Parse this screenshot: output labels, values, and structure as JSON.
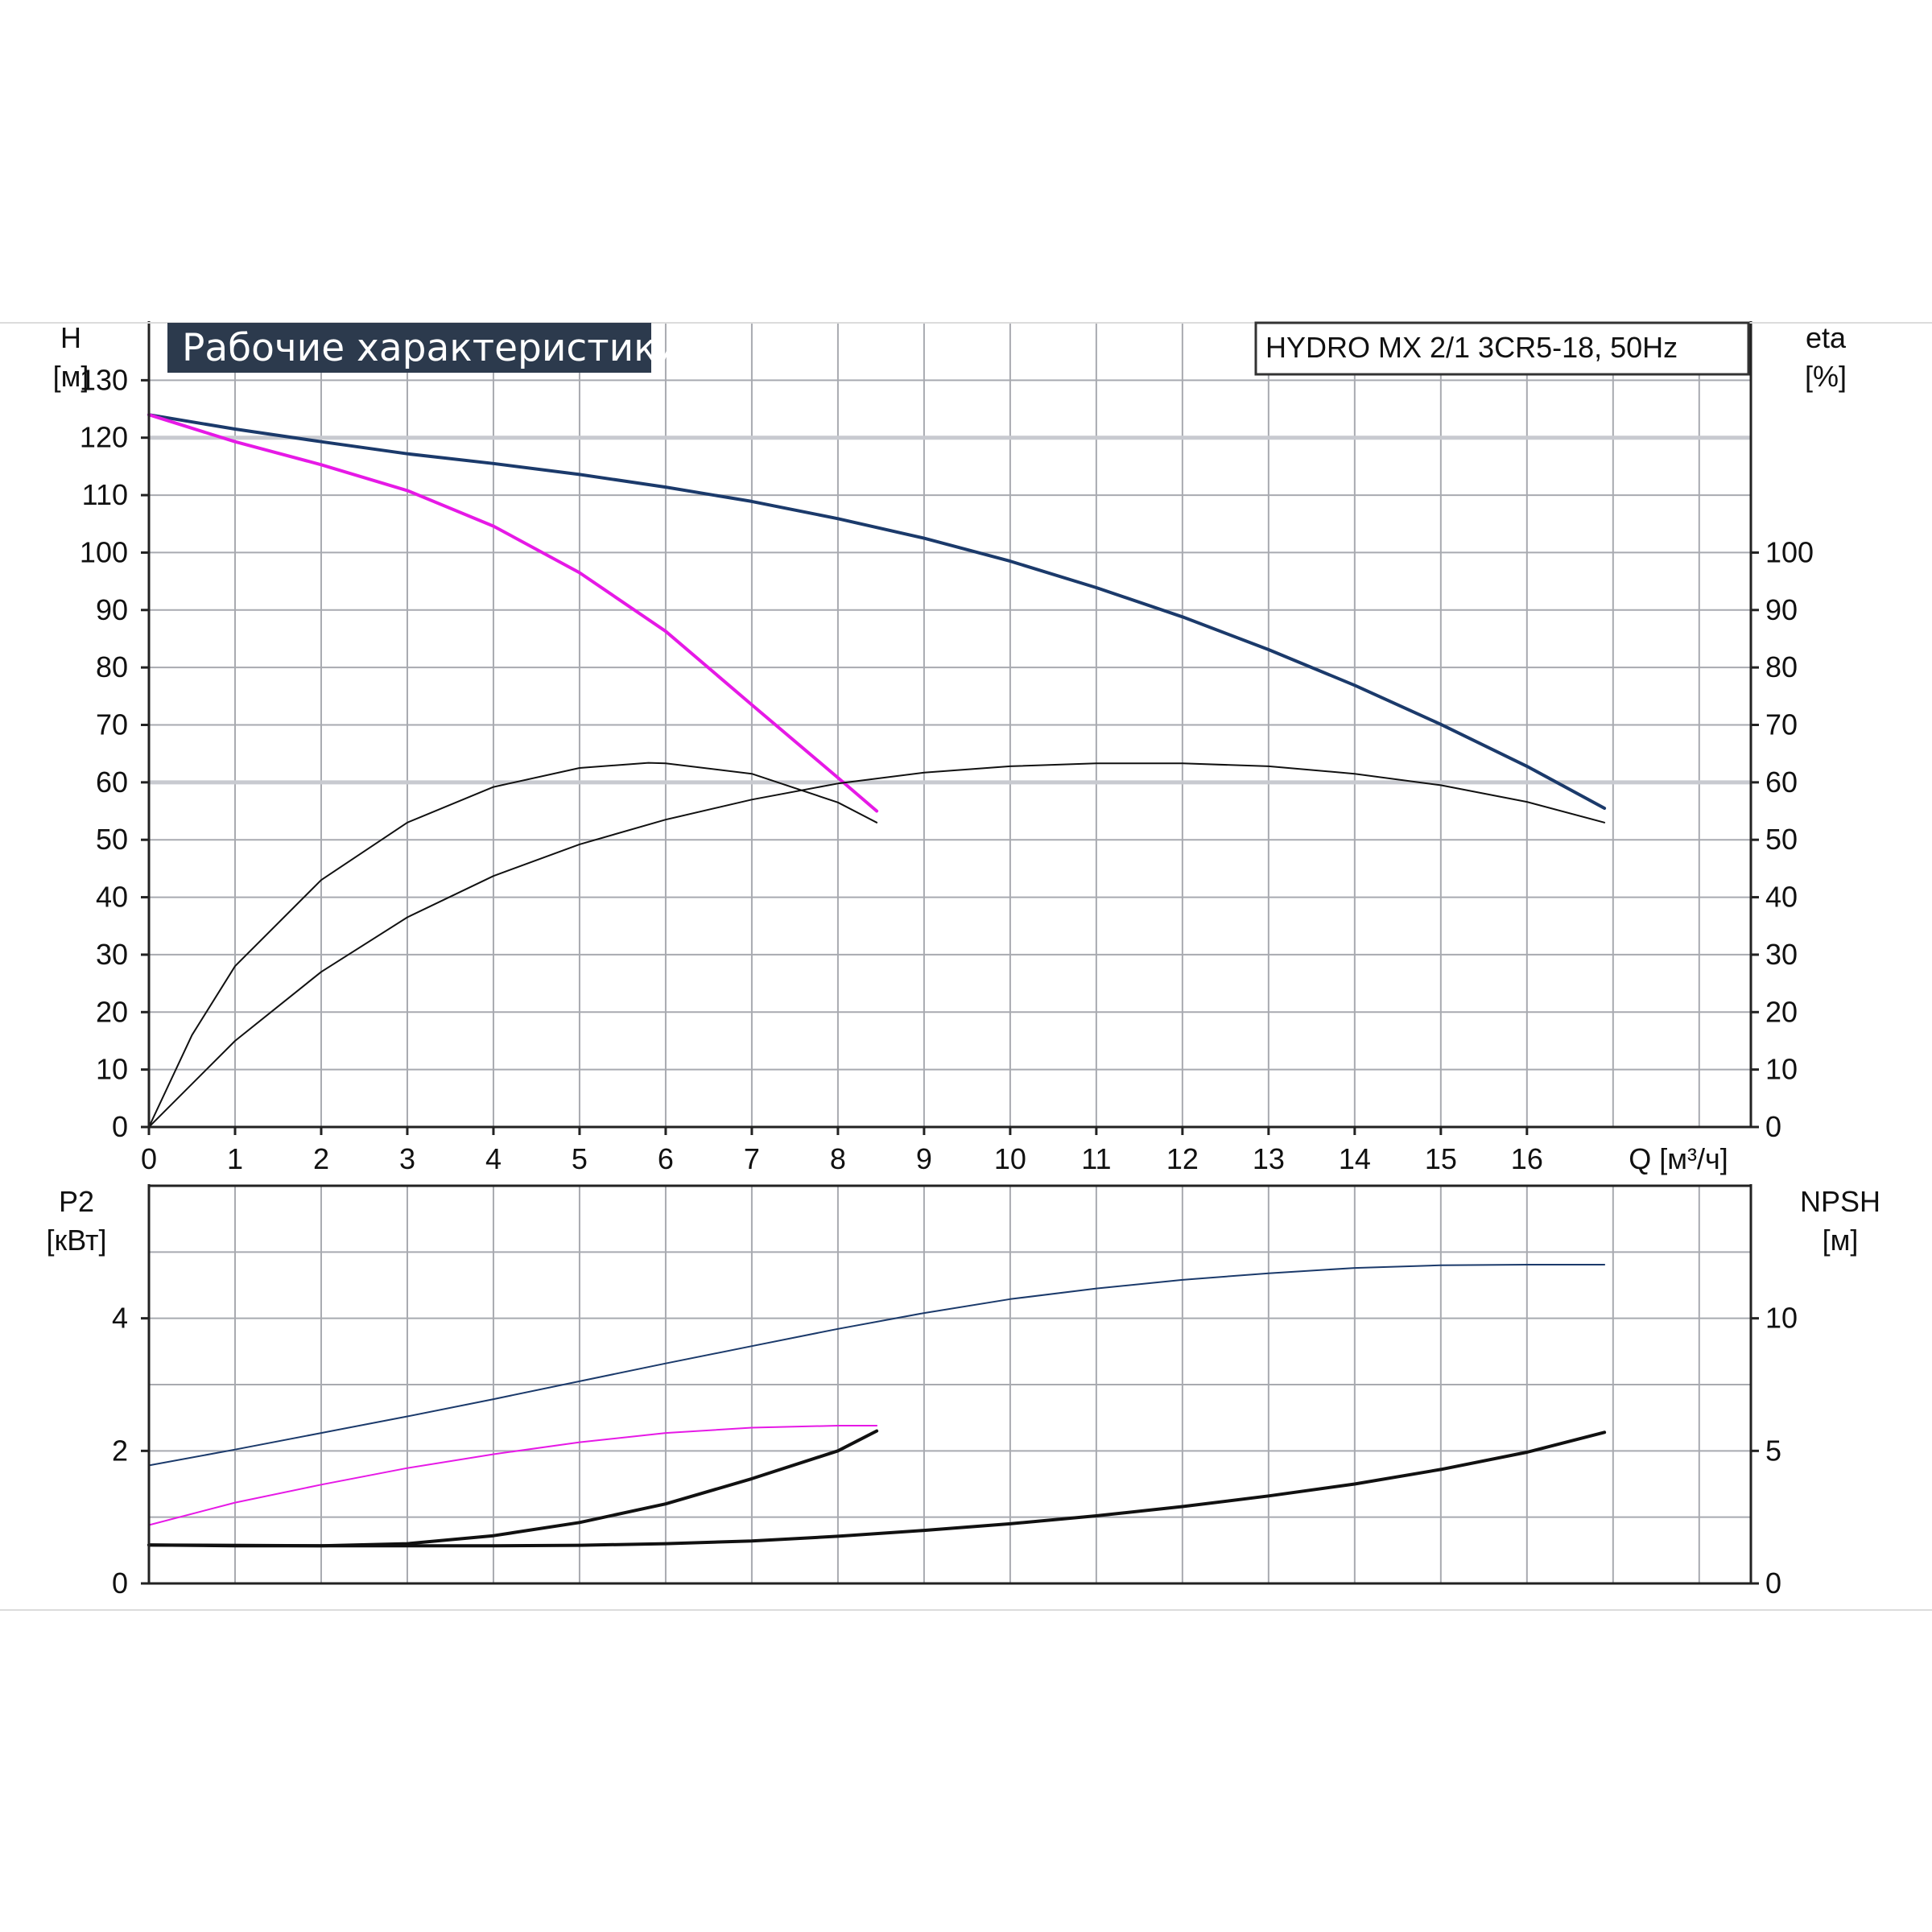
{
  "title": "Рабочие характеристики",
  "model": "HYDRO MX 2/1 3CR5-18, 50Hz",
  "colors": {
    "title_bg": "#2c3a4d",
    "grid": "#a8aab0",
    "grid_major": "#c8cad0",
    "navy": "#1b3a6b",
    "magenta": "#e619e6",
    "black": "#111111"
  },
  "chart_data": [
    {
      "type": "line",
      "title": "Рабочие характеристики",
      "xlabel": "Q [м³/ч]",
      "xlim": [
        0,
        18.6
      ],
      "xticks": [
        0,
        1,
        2,
        3,
        4,
        5,
        6,
        7,
        8,
        9,
        10,
        11,
        12,
        13,
        14,
        15,
        16
      ],
      "ylabel_left": "H",
      "yunit_left": "[м]",
      "ylim_left": [
        0,
        140
      ],
      "yticks_left": [
        0,
        10,
        20,
        30,
        40,
        50,
        60,
        70,
        80,
        90,
        100,
        110,
        120,
        130
      ],
      "ylabel_right": "eta",
      "yunit_right": "[%]",
      "ylim_right": [
        0,
        140
      ],
      "yticks_right": [
        0,
        10,
        20,
        30,
        40,
        50,
        60,
        70,
        80,
        90,
        100
      ],
      "grid": true,
      "series": [
        {
          "axis": "left",
          "color": "navy",
          "width": 4,
          "x": [
            0,
            1,
            2,
            3,
            4,
            5,
            6,
            7,
            8,
            9,
            10,
            11,
            12,
            13,
            14,
            15,
            16,
            16.9
          ],
          "y": [
            124,
            121.5,
            119.3,
            117.2,
            115.5,
            113.6,
            111.4,
            108.9,
            105.9,
            102.5,
            98.5,
            93.9,
            88.8,
            83.1,
            76.9,
            70.1,
            62.8,
            55.5
          ]
        },
        {
          "axis": "left",
          "color": "magenta",
          "width": 4,
          "x": [
            0,
            1,
            2,
            3,
            4,
            5,
            6,
            7,
            8,
            8.45
          ],
          "y": [
            124,
            119.3,
            115.3,
            110.8,
            104.6,
            96.5,
            86.3,
            73.5,
            60.8,
            55
          ]
        },
        {
          "axis": "right",
          "color": "black",
          "width": 2,
          "x": [
            0,
            0.5,
            1,
            2,
            3,
            4,
            5,
            5.8,
            6,
            7,
            8,
            8.45
          ],
          "y": [
            0,
            16,
            28,
            43,
            53,
            59.2,
            62.5,
            63.4,
            63.3,
            61.5,
            56.5,
            53
          ]
        },
        {
          "axis": "right",
          "color": "black",
          "width": 2,
          "x": [
            0,
            1,
            2,
            3,
            4,
            5,
            6,
            7,
            8,
            9,
            10,
            11,
            12,
            13,
            14,
            15,
            16,
            16.9
          ],
          "y": [
            0,
            15,
            27,
            36.5,
            43.7,
            49.2,
            53.5,
            57,
            59.8,
            61.7,
            62.8,
            63.3,
            63.3,
            62.8,
            61.5,
            59.5,
            56.6,
            53
          ]
        }
      ]
    },
    {
      "type": "line",
      "xlim": [
        0,
        18.6
      ],
      "ylabel_left": "P2",
      "yunit_left": "[кВт]",
      "ylim_left": [
        0,
        6
      ],
      "yticks_left": [
        0,
        2,
        4
      ],
      "ylabel_right": "NPSH",
      "yunit_right": "[м]",
      "ylim_right": [
        0,
        15
      ],
      "yticks_right": [
        0,
        5,
        10
      ],
      "grid": true,
      "series": [
        {
          "axis": "left",
          "color": "navy",
          "width": 2,
          "x": [
            0,
            1,
            2,
            3,
            4,
            5,
            6,
            7,
            8,
            9,
            10,
            11,
            12,
            13,
            14,
            15,
            16,
            16.9
          ],
          "y": [
            1.78,
            2.02,
            2.27,
            2.52,
            2.78,
            3.05,
            3.32,
            3.58,
            3.84,
            4.08,
            4.29,
            4.45,
            4.58,
            4.68,
            4.76,
            4.8,
            4.81,
            4.81
          ]
        },
        {
          "axis": "left",
          "color": "magenta",
          "width": 2,
          "x": [
            0,
            1,
            2,
            3,
            4,
            5,
            6,
            7,
            8,
            8.45
          ],
          "y": [
            0.88,
            1.22,
            1.49,
            1.74,
            1.95,
            2.13,
            2.27,
            2.35,
            2.38,
            2.38
          ]
        },
        {
          "axis": "right",
          "color": "black",
          "width": 4,
          "x": [
            0,
            1,
            2,
            3,
            4,
            5,
            6,
            7,
            8,
            8.45
          ],
          "y": [
            1.45,
            1.42,
            1.42,
            1.5,
            1.8,
            2.3,
            3.0,
            3.95,
            5.0,
            5.75
          ]
        },
        {
          "axis": "right",
          "color": "black",
          "width": 4,
          "x": [
            0,
            2,
            4,
            5,
            6,
            7,
            8,
            9,
            10,
            11,
            12,
            13,
            14,
            15,
            16,
            16.9
          ],
          "y": [
            1.45,
            1.42,
            1.42,
            1.44,
            1.5,
            1.6,
            1.78,
            2.0,
            2.25,
            2.55,
            2.9,
            3.3,
            3.75,
            4.3,
            4.95,
            5.7
          ]
        }
      ]
    }
  ]
}
